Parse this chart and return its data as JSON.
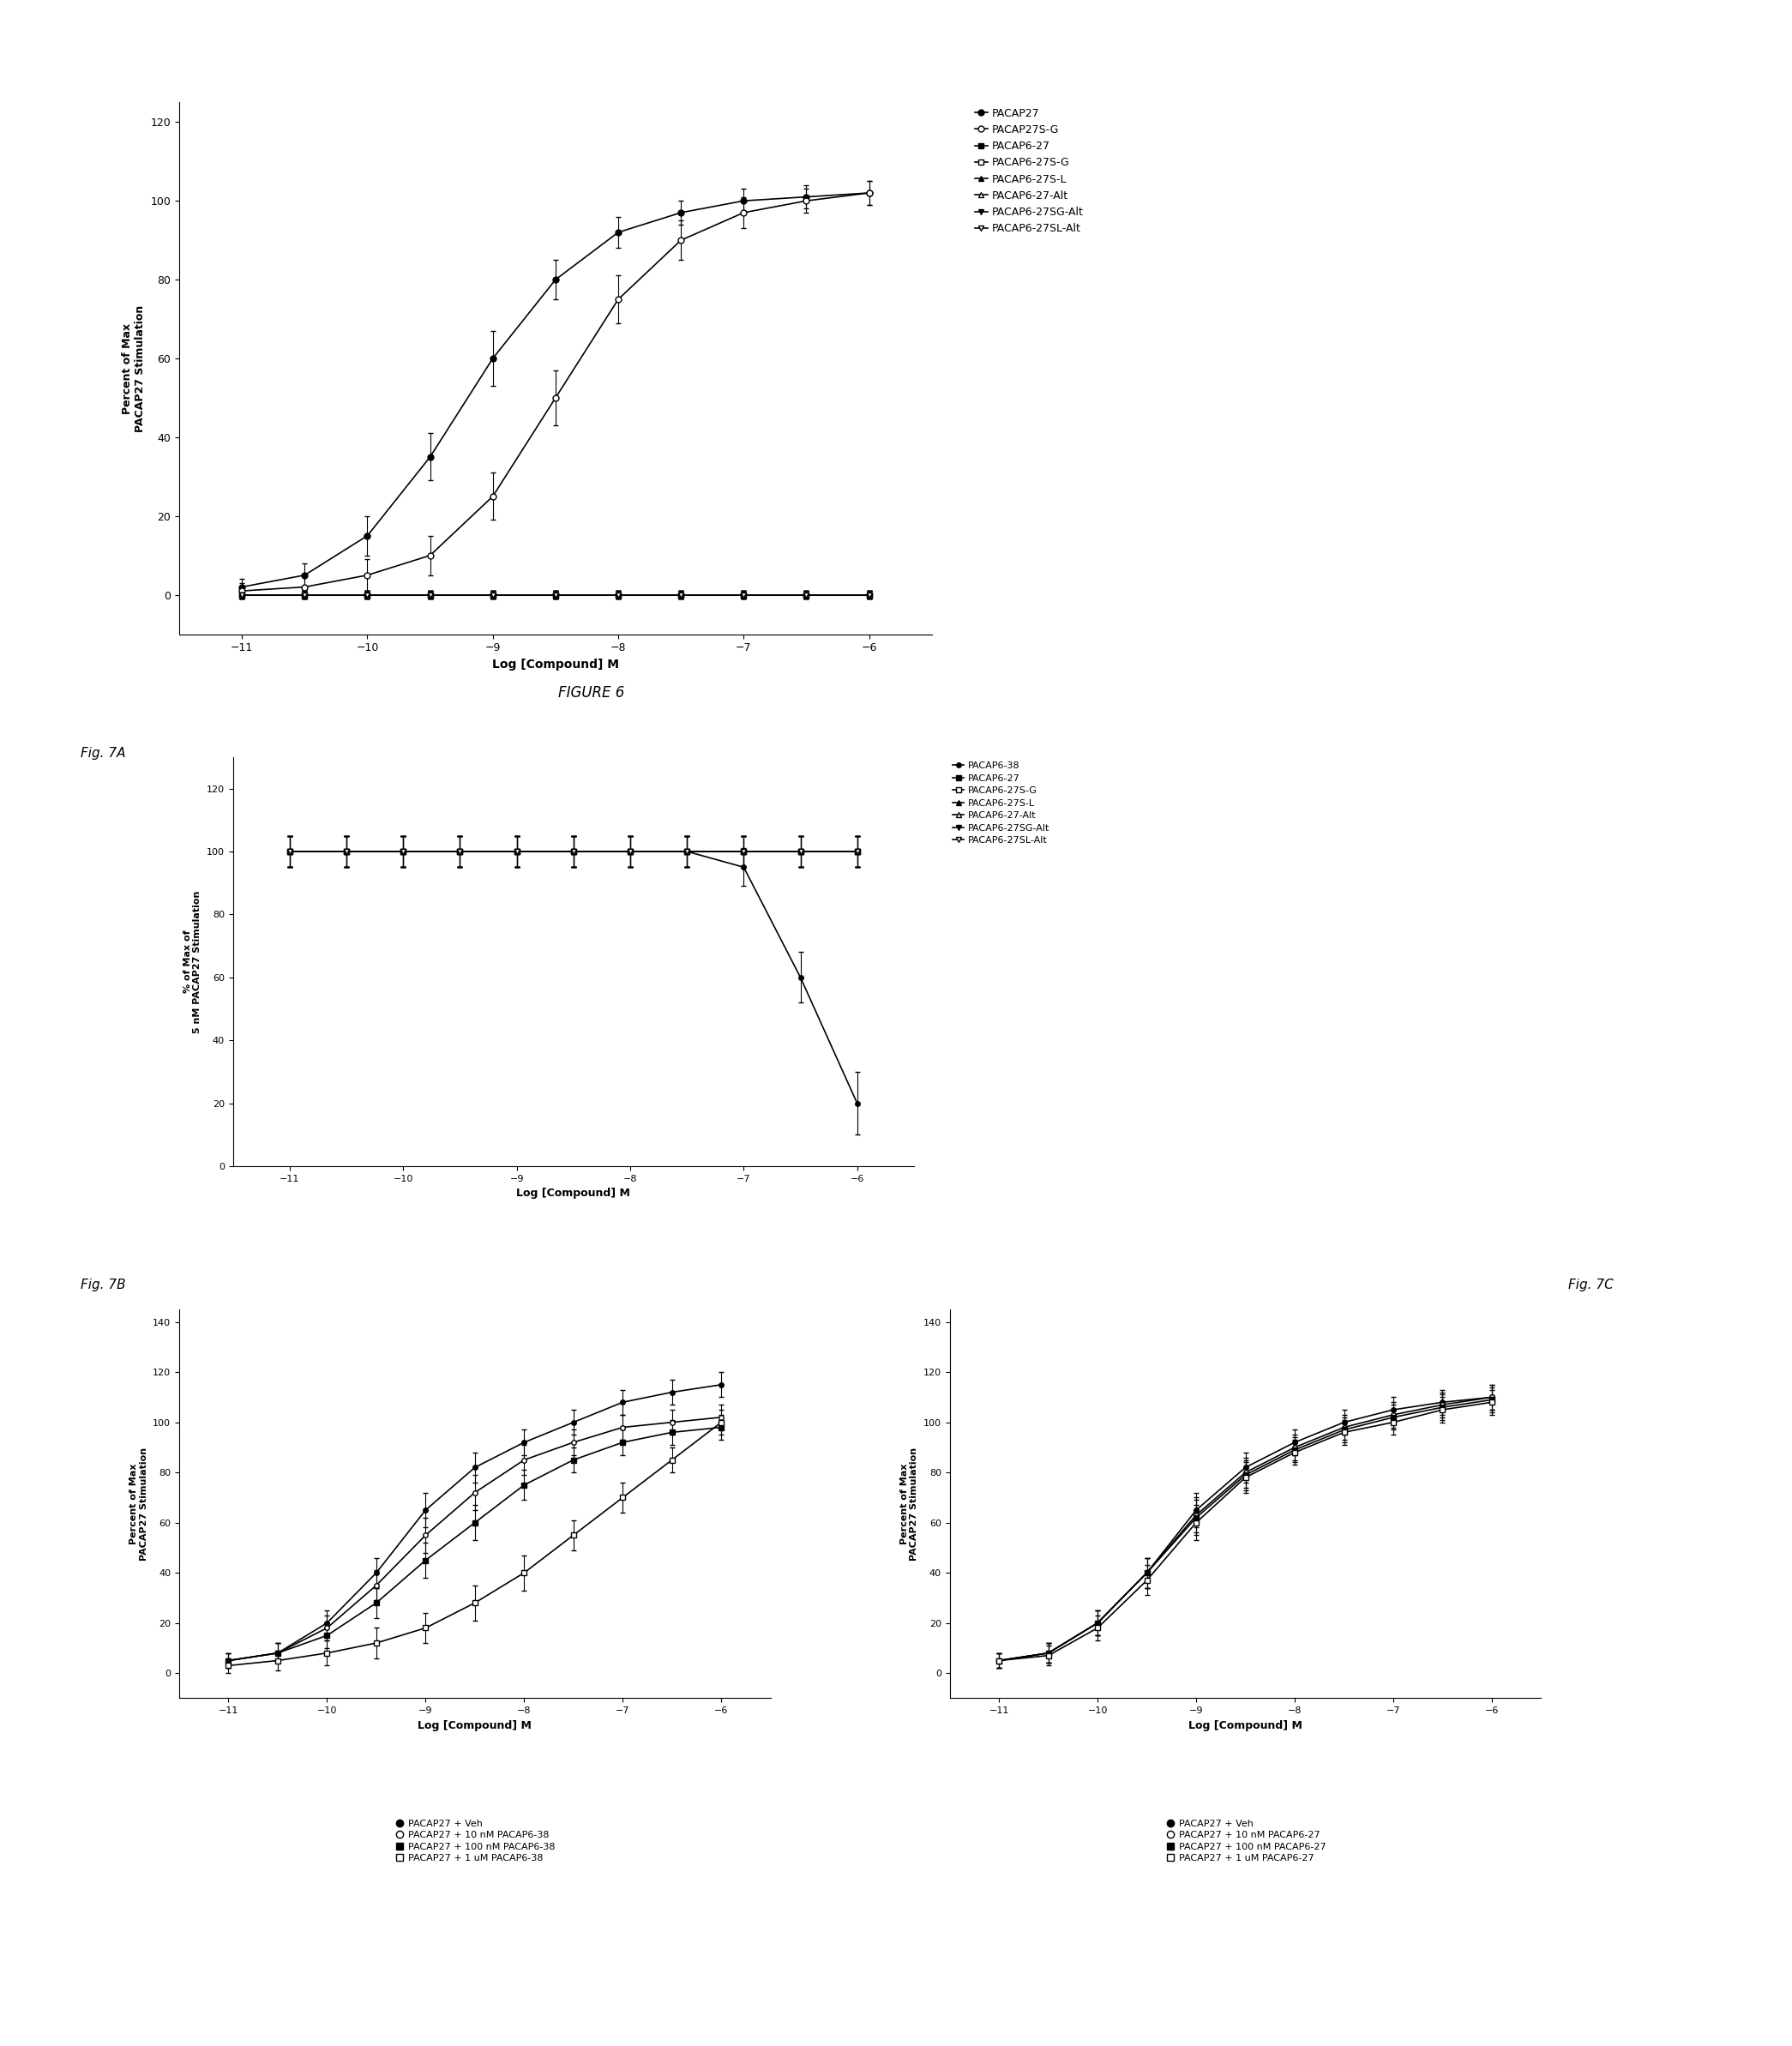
{
  "fig6": {
    "title": "FIGURE 6",
    "xlabel": "Log [Compound] M",
    "ylabel": "Percent of Max\nPACAP27 Stimulation",
    "xlim": [
      -11.5,
      -5.5
    ],
    "ylim": [
      -10,
      125
    ],
    "xticks": [
      -11,
      -10,
      -9,
      -8,
      -7,
      -6
    ],
    "yticks": [
      0,
      20,
      40,
      60,
      80,
      100,
      120
    ],
    "series": [
      {
        "label": "PACAP27",
        "marker": "o",
        "fillstyle": "full",
        "x": [
          -11,
          -10.5,
          -10,
          -9.5,
          -9,
          -8.5,
          -8,
          -7.5,
          -7,
          -6.5,
          -6
        ],
        "y": [
          2,
          5,
          15,
          35,
          60,
          80,
          92,
          97,
          100,
          101,
          102
        ],
        "yerr": [
          2,
          3,
          5,
          6,
          7,
          5,
          4,
          3,
          3,
          3,
          3
        ]
      },
      {
        "label": "PACAP27S-G",
        "marker": "o",
        "fillstyle": "none",
        "x": [
          -11,
          -10.5,
          -10,
          -9.5,
          -9,
          -8.5,
          -8,
          -7.5,
          -7,
          -6.5,
          -6
        ],
        "y": [
          1,
          2,
          5,
          10,
          25,
          50,
          75,
          90,
          97,
          100,
          102
        ],
        "yerr": [
          2,
          3,
          4,
          5,
          6,
          7,
          6,
          5,
          4,
          3,
          3
        ]
      },
      {
        "label": "PACAP6-27",
        "marker": "s",
        "fillstyle": "full",
        "x": [
          -11,
          -10.5,
          -10,
          -9.5,
          -9,
          -8.5,
          -8,
          -7.5,
          -7,
          -6.5,
          -6
        ],
        "y": [
          0,
          0,
          0,
          0,
          0,
          0,
          0,
          0,
          0,
          0,
          0
        ],
        "yerr": [
          1,
          1,
          1,
          1,
          1,
          1,
          1,
          1,
          1,
          1,
          1
        ]
      },
      {
        "label": "PACAP6-27S-G",
        "marker": "s",
        "fillstyle": "none",
        "x": [
          -11,
          -10.5,
          -10,
          -9.5,
          -9,
          -8.5,
          -8,
          -7.5,
          -7,
          -6.5,
          -6
        ],
        "y": [
          0,
          0,
          0,
          0,
          0,
          0,
          0,
          0,
          0,
          0,
          0
        ],
        "yerr": [
          1,
          1,
          1,
          1,
          1,
          1,
          1,
          1,
          1,
          1,
          1
        ]
      },
      {
        "label": "PACAP6-27S-L",
        "marker": "^",
        "fillstyle": "full",
        "x": [
          -11,
          -10.5,
          -10,
          -9.5,
          -9,
          -8.5,
          -8,
          -7.5,
          -7,
          -6.5,
          -6
        ],
        "y": [
          0,
          0,
          0,
          0,
          0,
          0,
          0,
          0,
          0,
          0,
          0
        ],
        "yerr": [
          1,
          1,
          1,
          1,
          1,
          1,
          1,
          1,
          1,
          1,
          1
        ]
      },
      {
        "label": "PACAP6-27-Alt",
        "marker": "^",
        "fillstyle": "none",
        "x": [
          -11,
          -10.5,
          -10,
          -9.5,
          -9,
          -8.5,
          -8,
          -7.5,
          -7,
          -6.5,
          -6
        ],
        "y": [
          0,
          0,
          0,
          0,
          0,
          0,
          0,
          0,
          0,
          0,
          0
        ],
        "yerr": [
          1,
          1,
          1,
          1,
          1,
          1,
          1,
          1,
          1,
          1,
          1
        ]
      },
      {
        "label": "PACAP6-27SG-Alt",
        "marker": "v",
        "fillstyle": "full",
        "x": [
          -11,
          -10.5,
          -10,
          -9.5,
          -9,
          -8.5,
          -8,
          -7.5,
          -7,
          -6.5,
          -6
        ],
        "y": [
          0,
          0,
          0,
          0,
          0,
          0,
          0,
          0,
          0,
          0,
          0
        ],
        "yerr": [
          1,
          1,
          1,
          1,
          1,
          1,
          1,
          1,
          1,
          1,
          1
        ]
      },
      {
        "label": "PACAP6-27SL-Alt",
        "marker": "v",
        "fillstyle": "none",
        "x": [
          -11,
          -10.5,
          -10,
          -9.5,
          -9,
          -8.5,
          -8,
          -7.5,
          -7,
          -6.5,
          -6
        ],
        "y": [
          0,
          0,
          0,
          0,
          0,
          0,
          0,
          0,
          0,
          0,
          0
        ],
        "yerr": [
          1,
          1,
          1,
          1,
          1,
          1,
          1,
          1,
          1,
          1,
          1
        ]
      }
    ]
  },
  "fig7a": {
    "xlabel": "Log [Compound] M",
    "ylabel": "% of Max of\n5 nM PACAP27 Stimulation",
    "xlim": [
      -11.5,
      -5.5
    ],
    "ylim": [
      0,
      130
    ],
    "xticks": [
      -11,
      -10,
      -9,
      -8,
      -7,
      -6
    ],
    "yticks": [
      0,
      20,
      40,
      60,
      80,
      100,
      120
    ],
    "series": [
      {
        "label": "PACAP6-38",
        "marker": "o",
        "fillstyle": "full",
        "x": [
          -11,
          -10.5,
          -10,
          -9.5,
          -9,
          -8.5,
          -8,
          -7.5,
          -7,
          -6.5,
          -6
        ],
        "y": [
          100,
          100,
          100,
          100,
          100,
          100,
          100,
          100,
          95,
          60,
          20
        ],
        "yerr": [
          5,
          5,
          5,
          5,
          5,
          5,
          5,
          5,
          6,
          8,
          10
        ]
      },
      {
        "label": "PACAP6-27",
        "marker": "s",
        "fillstyle": "full",
        "x": [
          -11,
          -10.5,
          -10,
          -9.5,
          -9,
          -8.5,
          -8,
          -7.5,
          -7,
          -6.5,
          -6
        ],
        "y": [
          100,
          100,
          100,
          100,
          100,
          100,
          100,
          100,
          100,
          100,
          100
        ],
        "yerr": [
          5,
          5,
          5,
          5,
          5,
          5,
          5,
          5,
          5,
          5,
          5
        ]
      },
      {
        "label": "PACAP6-27S-G",
        "marker": "s",
        "fillstyle": "none",
        "x": [
          -11,
          -10.5,
          -10,
          -9.5,
          -9,
          -8.5,
          -8,
          -7.5,
          -7,
          -6.5,
          -6
        ],
        "y": [
          100,
          100,
          100,
          100,
          100,
          100,
          100,
          100,
          100,
          100,
          100
        ],
        "yerr": [
          5,
          5,
          5,
          5,
          5,
          5,
          5,
          5,
          5,
          5,
          5
        ]
      },
      {
        "label": "PACAP6-27S-L",
        "marker": "^",
        "fillstyle": "full",
        "x": [
          -11,
          -10.5,
          -10,
          -9.5,
          -9,
          -8.5,
          -8,
          -7.5,
          -7,
          -6.5,
          -6
        ],
        "y": [
          100,
          100,
          100,
          100,
          100,
          100,
          100,
          100,
          100,
          100,
          100
        ],
        "yerr": [
          5,
          5,
          5,
          5,
          5,
          5,
          5,
          5,
          5,
          5,
          5
        ]
      },
      {
        "label": "PACAP6-27-Alt",
        "marker": "^",
        "fillstyle": "none",
        "x": [
          -11,
          -10.5,
          -10,
          -9.5,
          -9,
          -8.5,
          -8,
          -7.5,
          -7,
          -6.5,
          -6
        ],
        "y": [
          100,
          100,
          100,
          100,
          100,
          100,
          100,
          100,
          100,
          100,
          100
        ],
        "yerr": [
          5,
          5,
          5,
          5,
          5,
          5,
          5,
          5,
          5,
          5,
          5
        ]
      },
      {
        "label": "PACAP6-27SG-Alt",
        "marker": "v",
        "fillstyle": "full",
        "x": [
          -11,
          -10.5,
          -10,
          -9.5,
          -9,
          -8.5,
          -8,
          -7.5,
          -7,
          -6.5,
          -6
        ],
        "y": [
          100,
          100,
          100,
          100,
          100,
          100,
          100,
          100,
          100,
          100,
          100
        ],
        "yerr": [
          5,
          5,
          5,
          5,
          5,
          5,
          5,
          5,
          5,
          5,
          5
        ]
      },
      {
        "label": "PACAP6-27SL-Alt",
        "marker": "v",
        "fillstyle": "none",
        "x": [
          -11,
          -10.5,
          -10,
          -9.5,
          -9,
          -8.5,
          -8,
          -7.5,
          -7,
          -6.5,
          -6
        ],
        "y": [
          100,
          100,
          100,
          100,
          100,
          100,
          100,
          100,
          100,
          100,
          100
        ],
        "yerr": [
          5,
          5,
          5,
          5,
          5,
          5,
          5,
          5,
          5,
          5,
          5
        ]
      }
    ]
  },
  "fig7b": {
    "xlabel": "Log [Compound] M",
    "ylabel": "Percent of Max\nPACAP27 Stimulation",
    "xlim": [
      -11.5,
      -5.5
    ],
    "ylim": [
      -10,
      145
    ],
    "xticks": [
      -11,
      -10,
      -9,
      -8,
      -7,
      -6
    ],
    "yticks": [
      0,
      20,
      40,
      60,
      80,
      100,
      120,
      140
    ],
    "legend": [
      "PACAP27 + Veh",
      "PACAP27 + 10 nM PACAP6-38",
      "PACAP27 + 100 nM PACAP6-38",
      "PACAP27 + 1 uM PACAP6-38"
    ],
    "series": [
      {
        "label": "PACAP27 + Veh",
        "marker": "o",
        "fillstyle": "full",
        "x": [
          -11,
          -10.5,
          -10,
          -9.5,
          -9,
          -8.5,
          -8,
          -7.5,
          -7,
          -6.5,
          -6
        ],
        "y": [
          5,
          8,
          20,
          40,
          65,
          82,
          92,
          100,
          108,
          112,
          115
        ],
        "yerr": [
          3,
          4,
          5,
          6,
          7,
          6,
          5,
          5,
          5,
          5,
          5
        ]
      },
      {
        "label": "PACAP27 + 10 nM PACAP6-38",
        "marker": "o",
        "fillstyle": "none",
        "x": [
          -11,
          -10.5,
          -10,
          -9.5,
          -9,
          -8.5,
          -8,
          -7.5,
          -7,
          -6.5,
          -6
        ],
        "y": [
          5,
          8,
          18,
          35,
          55,
          72,
          85,
          92,
          98,
          100,
          102
        ],
        "yerr": [
          3,
          4,
          5,
          6,
          7,
          7,
          6,
          5,
          5,
          5,
          5
        ]
      },
      {
        "label": "PACAP27 + 100 nM PACAP6-38",
        "marker": "s",
        "fillstyle": "full",
        "x": [
          -11,
          -10.5,
          -10,
          -9.5,
          -9,
          -8.5,
          -8,
          -7.5,
          -7,
          -6.5,
          -6
        ],
        "y": [
          5,
          8,
          15,
          28,
          45,
          60,
          75,
          85,
          92,
          96,
          98
        ],
        "yerr": [
          3,
          4,
          5,
          6,
          7,
          7,
          6,
          5,
          5,
          5,
          5
        ]
      },
      {
        "label": "PACAP27 + 1 uM PACAP6-38",
        "marker": "s",
        "fillstyle": "none",
        "x": [
          -11,
          -10.5,
          -10,
          -9.5,
          -9,
          -8.5,
          -8,
          -7.5,
          -7,
          -6.5,
          -6
        ],
        "y": [
          3,
          5,
          8,
          12,
          18,
          28,
          40,
          55,
          70,
          85,
          100
        ],
        "yerr": [
          3,
          4,
          5,
          6,
          6,
          7,
          7,
          6,
          6,
          5,
          5
        ]
      }
    ]
  },
  "fig7c": {
    "xlabel": "Log [Compound] M",
    "ylabel": "Percent of Max\nPACAP27 Stimulation",
    "xlim": [
      -11.5,
      -5.5
    ],
    "ylim": [
      -10,
      145
    ],
    "xticks": [
      -11,
      -10,
      -9,
      -8,
      -7,
      -6
    ],
    "yticks": [
      0,
      20,
      40,
      60,
      80,
      100,
      120,
      140
    ],
    "legend": [
      "PACAP27 + Veh",
      "PACAP27 + 10 nM PACAP6-27",
      "PACAP27 + 100 nM PACAP6-27",
      "PACAP27 + 1 uM PACAP6-27"
    ],
    "series": [
      {
        "label": "PACAP27 + Veh",
        "marker": "o",
        "fillstyle": "full",
        "x": [
          -11,
          -10.5,
          -10,
          -9.5,
          -9,
          -8.5,
          -8,
          -7.5,
          -7,
          -6.5,
          -6
        ],
        "y": [
          5,
          8,
          20,
          40,
          65,
          82,
          92,
          100,
          105,
          108,
          110
        ],
        "yerr": [
          3,
          4,
          5,
          6,
          7,
          6,
          5,
          5,
          5,
          5,
          5
        ]
      },
      {
        "label": "PACAP27 + 10 nM PACAP6-27",
        "marker": "o",
        "fillstyle": "none",
        "x": [
          -11,
          -10.5,
          -10,
          -9.5,
          -9,
          -8.5,
          -8,
          -7.5,
          -7,
          -6.5,
          -6
        ],
        "y": [
          5,
          8,
          20,
          40,
          63,
          80,
          90,
          98,
          103,
          107,
          110
        ],
        "yerr": [
          3,
          4,
          5,
          6,
          7,
          6,
          5,
          5,
          5,
          5,
          5
        ]
      },
      {
        "label": "PACAP27 + 100 nM PACAP6-27",
        "marker": "s",
        "fillstyle": "full",
        "x": [
          -11,
          -10.5,
          -10,
          -9.5,
          -9,
          -8.5,
          -8,
          -7.5,
          -7,
          -6.5,
          -6
        ],
        "y": [
          5,
          8,
          20,
          40,
          62,
          79,
          89,
          97,
          102,
          106,
          109
        ],
        "yerr": [
          3,
          4,
          5,
          6,
          7,
          6,
          5,
          5,
          5,
          5,
          5
        ]
      },
      {
        "label": "PACAP27 + 1 uM PACAP6-27",
        "marker": "s",
        "fillstyle": "none",
        "x": [
          -11,
          -10.5,
          -10,
          -9.5,
          -9,
          -8.5,
          -8,
          -7.5,
          -7,
          -6.5,
          -6
        ],
        "y": [
          5,
          7,
          18,
          37,
          60,
          78,
          88,
          96,
          100,
          105,
          108
        ],
        "yerr": [
          3,
          4,
          5,
          6,
          7,
          6,
          5,
          5,
          5,
          5,
          5
        ]
      }
    ]
  }
}
